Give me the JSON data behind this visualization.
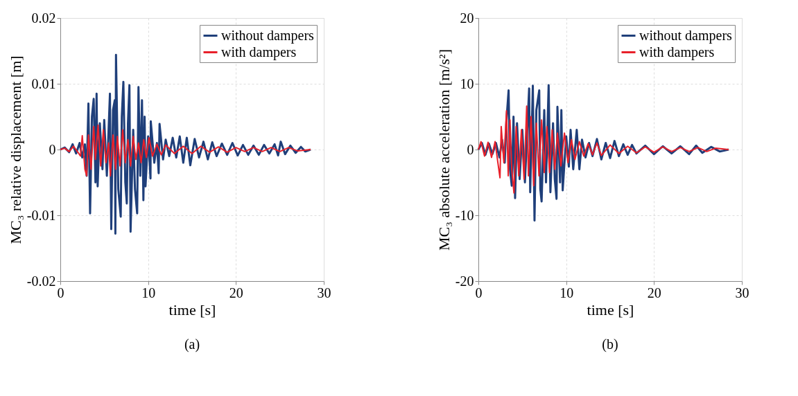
{
  "chart_data": [
    {
      "type": "line",
      "title": "(a)",
      "xlabel": "time [s]",
      "ylabel": "MC₃ relative displacement [m]",
      "xlim": [
        0,
        30
      ],
      "xticks": [
        0,
        10,
        20,
        30
      ],
      "ylim": [
        -0.02,
        0.02
      ],
      "yticks": [
        -0.02,
        -0.01,
        0,
        0.01,
        0.02
      ],
      "grid": true,
      "legend": "top right",
      "series": [
        {
          "name": "without dampers",
          "color": "#1f3f7a",
          "x": [
            0,
            0.5,
            1.0,
            1.4,
            1.8,
            2.2,
            2.5,
            2.8,
            3.0,
            3.2,
            3.39,
            3.6,
            3.8,
            4.0,
            4.13,
            4.25,
            4.5,
            4.8,
            5.0,
            5.3,
            5.65,
            5.8,
            6.0,
            6.2,
            6.27,
            6.34,
            6.6,
            6.88,
            7.0,
            7.18,
            7.4,
            7.57,
            7.7,
            7.87,
            8.0,
            8.3,
            8.5,
            8.75,
            8.9,
            9.1,
            9.3,
            9.46,
            9.6,
            9.7,
            10.0,
            10.27,
            10.3,
            10.7,
            11.0,
            11.2,
            11.3,
            11.7,
            12.0,
            12.4,
            12.8,
            13.2,
            13.6,
            14.0,
            14.4,
            14.8,
            15.3,
            15.8,
            16.3,
            16.8,
            17.3,
            17.8,
            18.4,
            19.0,
            19.6,
            20.2,
            20.8,
            21.4,
            22.0,
            22.6,
            23.2,
            23.8,
            24.4,
            24.8,
            25.1,
            25.6,
            26.2,
            26.8,
            27.4,
            27.9,
            28.5
          ],
          "values": [
            0,
            0.0003,
            -0.0004,
            0.0008,
            -0.0006,
            0.001,
            -0.0012,
            0.0008,
            -0.004,
            0.007,
            -0.0097,
            0.005,
            0.0077,
            -0.005,
            0.0085,
            -0.0056,
            0.004,
            -0.003,
            0.0045,
            -0.004,
            0.0085,
            -0.0121,
            0.006,
            0.0075,
            -0.0128,
            0.0144,
            -0.006,
            -0.0102,
            0.005,
            0.0103,
            -0.005,
            -0.0082,
            0.004,
            0.0098,
            -0.0125,
            0.003,
            -0.006,
            -0.0097,
            0.0095,
            -0.004,
            0.0075,
            -0.0077,
            0.005,
            -0.0056,
            0.002,
            -0.0044,
            0.0043,
            -0.002,
            0.001,
            -0.0036,
            0.0039,
            -0.0015,
            0.0015,
            -0.001,
            0.0018,
            -0.0012,
            0.002,
            -0.002,
            0.0018,
            -0.0024,
            0.0016,
            -0.0012,
            0.0012,
            -0.0015,
            0.0011,
            -0.001,
            0.0009,
            -0.0008,
            0.001,
            -0.0009,
            0.0007,
            -0.0008,
            0.0006,
            -0.0008,
            0.0007,
            -0.0006,
            0.0008,
            -0.0009,
            0.0012,
            -0.0007,
            0.0006,
            -0.0005,
            0.0004,
            -0.0003,
            0
          ]
        },
        {
          "name": "with dampers",
          "color": "#e8202a",
          "x": [
            0,
            0.5,
            1.0,
            1.5,
            2.0,
            2.3,
            2.5,
            2.8,
            3.0,
            3.2,
            3.5,
            3.8,
            4.0,
            4.3,
            4.6,
            4.9,
            5.2,
            5.5,
            5.7,
            6.0,
            6.3,
            6.5,
            6.8,
            7.1,
            7.4,
            7.7,
            8.0,
            8.3,
            8.6,
            8.9,
            9.2,
            9.5,
            9.8,
            10.1,
            10.5,
            11.0,
            11.5,
            12.0,
            13.0,
            14.0,
            15.0,
            16.0,
            17.0,
            18.0,
            19.0,
            20.0,
            21.0,
            22.0,
            23.0,
            24.0,
            25.0,
            26.0,
            27.0,
            28.5
          ],
          "values": [
            0,
            0.0002,
            -0.0003,
            0.0005,
            -0.0004,
            -0.001,
            0.0021,
            -0.003,
            -0.004,
            0.0022,
            -0.003,
            0.0035,
            -0.0015,
            0.0037,
            -0.0025,
            0.003,
            -0.002,
            0.001,
            -0.004,
            0.0022,
            -0.003,
            0.002,
            -0.0025,
            0.003,
            -0.002,
            0.0015,
            -0.0025,
            0.002,
            -0.0015,
            0.001,
            -0.002,
            0.0015,
            -0.0012,
            0.0018,
            -0.001,
            0.0008,
            -0.0008,
            0.0007,
            -0.0006,
            0.0005,
            -0.0006,
            0.0005,
            -0.0004,
            0.0004,
            -0.0004,
            0.0003,
            -0.0003,
            0.0003,
            -0.0003,
            0.0003,
            -0.0003,
            0.0003,
            -0.0002,
            0
          ]
        }
      ]
    },
    {
      "type": "line",
      "title": "(b)",
      "xlabel": "time [s]",
      "ylabel": "MC₃ absolute acceleration [m/s²]",
      "xlim": [
        0,
        30
      ],
      "xticks": [
        0,
        10,
        20,
        30
      ],
      "ylim": [
        -20,
        20
      ],
      "yticks": [
        -20,
        -10,
        0,
        10,
        20
      ],
      "grid": true,
      "legend": "top right",
      "series": [
        {
          "name": "without dampers",
          "color": "#1f3f7a",
          "x": [
            0,
            0.4,
            0.8,
            1.2,
            1.6,
            2.0,
            2.4,
            2.7,
            3.0,
            3.2,
            3.44,
            3.6,
            3.8,
            4.0,
            4.18,
            4.4,
            4.7,
            5.0,
            5.3,
            5.6,
            5.78,
            5.9,
            6.2,
            6.39,
            6.6,
            6.93,
            7.05,
            7.2,
            7.5,
            7.7,
            8.0,
            8.2,
            8.5,
            8.7,
            8.9,
            9.0,
            9.3,
            9.45,
            9.6,
            10.0,
            10.3,
            10.5,
            10.8,
            11.2,
            11.5,
            11.8,
            12.2,
            12.6,
            13.0,
            13.5,
            14.0,
            14.5,
            15.0,
            15.5,
            16.0,
            16.5,
            17.0,
            17.5,
            18.0,
            19.0,
            20.0,
            21.0,
            22.0,
            23.0,
            24.0,
            24.8,
            25.5,
            26.5,
            27.5,
            28.5
          ],
          "values": [
            0,
            1.0,
            -0.8,
            0.9,
            -0.7,
            1.0,
            -1.2,
            1.5,
            -2.0,
            4.5,
            9.0,
            -3.0,
            -5.5,
            5.0,
            -7.4,
            4.0,
            -4.5,
            3.0,
            -5.0,
            4.0,
            9.3,
            -6.5,
            9.7,
            -10.8,
            6.0,
            9.0,
            -6.0,
            -7.9,
            6.0,
            -5.0,
            9.8,
            -6.5,
            4.0,
            -4.5,
            -7.5,
            6.5,
            -5.0,
            6.0,
            -6.2,
            2.0,
            -2.6,
            3.0,
            -3.0,
            3.0,
            -3.0,
            1.5,
            -1.2,
            1.0,
            -1.0,
            1.6,
            -1.5,
            1.0,
            -1.3,
            1.3,
            -1.0,
            0.8,
            -0.8,
            0.7,
            -0.6,
            0.6,
            -0.7,
            0.5,
            -0.6,
            0.5,
            -0.7,
            0.6,
            -0.5,
            0.4,
            -0.3,
            0
          ]
        },
        {
          "name": "with dampers",
          "color": "#e8202a",
          "x": [
            0,
            0.3,
            0.7,
            1.1,
            1.5,
            1.9,
            2.2,
            2.46,
            2.6,
            2.9,
            3.2,
            3.4,
            3.6,
            3.8,
            4.05,
            4.3,
            4.6,
            4.9,
            5.2,
            5.5,
            5.7,
            6.0,
            6.3,
            6.6,
            6.9,
            7.2,
            7.5,
            7.8,
            8.1,
            8.4,
            8.7,
            9.0,
            9.4,
            9.8,
            10.2,
            10.6,
            11.0,
            11.5,
            12.0,
            12.5,
            13.0,
            13.5,
            14.0,
            15.0,
            16.0,
            17.0,
            18.0,
            19.0,
            20.0,
            21.0,
            22.0,
            23.0,
            24.0,
            25.0,
            26.0,
            27.0,
            28.5
          ],
          "values": [
            0,
            1.2,
            -1.0,
            1.1,
            -1.2,
            1.2,
            -1.8,
            -4.3,
            3.5,
            -2.0,
            5.9,
            -4.0,
            4.5,
            -3.0,
            -6.6,
            3.5,
            -4.0,
            3.0,
            -4.5,
            6.6,
            -4.0,
            5.0,
            -5.5,
            4.0,
            -4.0,
            4.5,
            -3.5,
            3.5,
            -3.5,
            3.0,
            -3.0,
            2.5,
            -2.5,
            2.5,
            -2.0,
            1.5,
            -1.5,
            1.2,
            -1.0,
            0.9,
            -0.8,
            1.0,
            -0.9,
            0.7,
            -0.6,
            0.5,
            -0.5,
            0.4,
            -0.4,
            0.4,
            -0.3,
            0.3,
            -0.3,
            0.3,
            -0.3,
            0.2,
            0
          ]
        }
      ]
    }
  ]
}
